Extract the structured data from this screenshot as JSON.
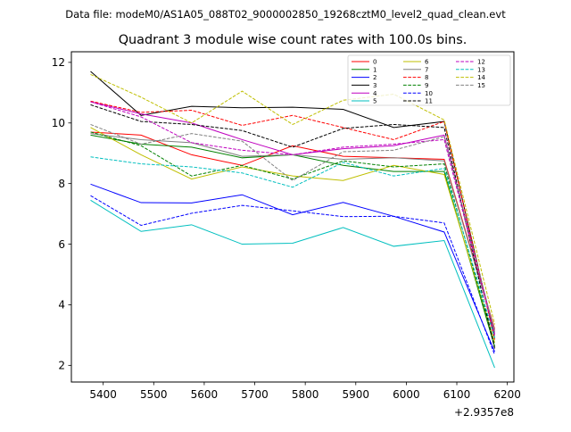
{
  "suptitle": "Data file: modeM0/AS1A05_088T02_9000002850_19268cztM0_level2_quad_clean.evt",
  "chart_data": {
    "type": "line",
    "title": "Quadrant 3 module wise count rates with 100.0s bins.",
    "xlabel": "",
    "ylabel": "",
    "x_offset_label": "+2.9357e8",
    "xlim": [
      5337,
      6213
    ],
    "ylim": [
      1.45,
      12.35
    ],
    "x_ticks": [
      5400,
      5500,
      5600,
      5700,
      5800,
      5900,
      6000,
      6100,
      6200
    ],
    "y_ticks": [
      2,
      4,
      6,
      8,
      10,
      12
    ],
    "x": [
      5375,
      5475,
      5575,
      5675,
      5775,
      5875,
      5975,
      6075,
      6175
    ],
    "legend_position": "upper right",
    "series": [
      {
        "name": "0",
        "color": "#ff0000",
        "dash": false,
        "values": [
          9.7,
          9.6,
          8.95,
          8.6,
          9.25,
          8.9,
          8.85,
          8.8,
          3.2
        ]
      },
      {
        "name": "1",
        "color": "#008000",
        "dash": false,
        "values": [
          9.6,
          9.3,
          9.2,
          8.85,
          8.95,
          8.6,
          8.4,
          8.4,
          2.6
        ]
      },
      {
        "name": "2",
        "color": "#0000ff",
        "dash": false,
        "values": [
          7.98,
          7.37,
          7.36,
          7.63,
          6.97,
          7.38,
          6.92,
          6.4,
          2.45
        ]
      },
      {
        "name": "3",
        "color": "#000000",
        "dash": false,
        "values": [
          11.7,
          10.25,
          10.55,
          10.5,
          10.52,
          10.45,
          9.85,
          10.05,
          2.9
        ]
      },
      {
        "name": "4",
        "color": "#bf00bf",
        "dash": false,
        "values": [
          10.7,
          10.3,
          10.0,
          9.45,
          8.95,
          9.15,
          9.25,
          9.6,
          3.05
        ]
      },
      {
        "name": "5",
        "color": "#00bfbf",
        "dash": false,
        "values": [
          7.45,
          6.42,
          6.64,
          6.0,
          6.03,
          6.55,
          5.93,
          6.12,
          1.92
        ]
      },
      {
        "name": "6",
        "color": "#bfbf00",
        "dash": false,
        "values": [
          9.85,
          8.95,
          8.15,
          8.55,
          8.25,
          8.1,
          8.6,
          8.3,
          2.75
        ]
      },
      {
        "name": "7",
        "color": "#808080",
        "dash": false,
        "values": [
          9.65,
          9.45,
          9.35,
          8.9,
          8.95,
          8.8,
          8.85,
          8.75,
          3.15
        ]
      },
      {
        "name": "8",
        "color": "#ff0000",
        "dash": true,
        "values": [
          10.72,
          10.35,
          10.42,
          9.92,
          10.25,
          9.85,
          9.45,
          10.05,
          2.85
        ]
      },
      {
        "name": "9",
        "color": "#008000",
        "dash": true,
        "values": [
          9.7,
          9.25,
          8.25,
          8.6,
          8.15,
          8.75,
          8.55,
          8.65,
          2.65
        ]
      },
      {
        "name": "10",
        "color": "#0000ff",
        "dash": true,
        "values": [
          7.6,
          6.62,
          7.02,
          7.28,
          7.1,
          6.91,
          6.92,
          6.7,
          2.35
        ]
      },
      {
        "name": "11",
        "color": "#000000",
        "dash": true,
        "values": [
          10.6,
          10.05,
          9.95,
          9.75,
          9.2,
          9.82,
          9.95,
          9.85,
          2.55
        ]
      },
      {
        "name": "12",
        "color": "#bf00bf",
        "dash": true,
        "values": [
          10.7,
          10.2,
          9.35,
          9.1,
          8.95,
          9.2,
          9.3,
          9.45,
          3.0
        ]
      },
      {
        "name": "13",
        "color": "#00bfbf",
        "dash": true,
        "values": [
          8.88,
          8.65,
          8.55,
          8.35,
          7.88,
          8.7,
          8.25,
          8.5,
          2.9
        ]
      },
      {
        "name": "14",
        "color": "#bfbf00",
        "dash": true,
        "values": [
          11.6,
          10.85,
          10.0,
          11.05,
          9.95,
          10.75,
          10.95,
          10.1,
          3.35
        ]
      },
      {
        "name": "15",
        "color": "#808080",
        "dash": true,
        "values": [
          9.95,
          9.3,
          9.65,
          9.4,
          8.1,
          9.05,
          9.1,
          9.55,
          3.1
        ]
      }
    ]
  }
}
